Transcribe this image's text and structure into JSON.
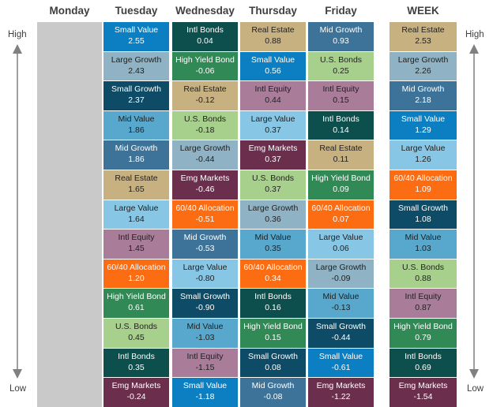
{
  "chart_data": {
    "type": "table",
    "columns": [
      "Monday",
      "Tuesday",
      "Wednesday",
      "Thursday",
      "Friday",
      "WEEK"
    ],
    "axis": {
      "top": "High",
      "bottom": "Low"
    },
    "colors": {
      "Small Value": "#0b7fc1",
      "Large Growth": "#8fb3c5",
      "Small Growth": "#0d4b66",
      "Mid Value": "#58a7cc",
      "Mid Growth": "#3d7398",
      "Real Estate": "#c8b181",
      "Large Value": "#87c6e4",
      "Intl Equity": "#a97d9a",
      "60/40 Allocation": "#fb6c13",
      "High Yield Bond": "#318a55",
      "U.S. Bonds": "#a8d08d",
      "Intl Bonds": "#0d4f4c",
      "Emg Markets": "#6b2e4d",
      "monday_blank": "#c9c9c9"
    },
    "days": [
      {
        "name": "Monday",
        "rows": []
      },
      {
        "name": "Tuesday",
        "rows": [
          {
            "asset": "Small Value",
            "value": "2.55"
          },
          {
            "asset": "Large Growth",
            "value": "2.43"
          },
          {
            "asset": "Small Growth",
            "value": "2.37"
          },
          {
            "asset": "Mid Value",
            "value": "1.86"
          },
          {
            "asset": "Mid Growth",
            "value": "1.86"
          },
          {
            "asset": "Real Estate",
            "value": "1.65"
          },
          {
            "asset": "Large Value",
            "value": "1.64"
          },
          {
            "asset": "Intl Equity",
            "value": "1.45"
          },
          {
            "asset": "60/40 Allocation",
            "value": "1.20"
          },
          {
            "asset": "High Yield Bond",
            "value": "0.61"
          },
          {
            "asset": "U.S. Bonds",
            "value": "0.45"
          },
          {
            "asset": "Intl Bonds",
            "value": "0.35"
          },
          {
            "asset": "Emg Markets",
            "value": "-0.24"
          }
        ]
      },
      {
        "name": "Wednesday",
        "rows": [
          {
            "asset": "Intl Bonds",
            "value": "0.04"
          },
          {
            "asset": "High Yield Bond",
            "value": "-0.06"
          },
          {
            "asset": "Real Estate",
            "value": "-0.12"
          },
          {
            "asset": "U.S. Bonds",
            "value": "-0.18"
          },
          {
            "asset": "Large Growth",
            "value": "-0.44"
          },
          {
            "asset": "Emg Markets",
            "value": "-0.46"
          },
          {
            "asset": "60/40 Allocation",
            "value": "-0.51"
          },
          {
            "asset": "Mid Growth",
            "value": "-0.53"
          },
          {
            "asset": "Large Value",
            "value": "-0.80"
          },
          {
            "asset": "Small Growth",
            "value": "-0.90"
          },
          {
            "asset": "Mid Value",
            "value": "-1.03"
          },
          {
            "asset": "Intl Equity",
            "value": "-1.15"
          },
          {
            "asset": "Small Value",
            "value": "-1.18"
          }
        ]
      },
      {
        "name": "Thursday",
        "rows": [
          {
            "asset": "Real Estate",
            "value": "0.88"
          },
          {
            "asset": "Small Value",
            "value": "0.56"
          },
          {
            "asset": "Intl Equity",
            "value": "0.44"
          },
          {
            "asset": "Large Value",
            "value": "0.37"
          },
          {
            "asset": "Emg Markets",
            "value": "0.37"
          },
          {
            "asset": "U.S. Bonds",
            "value": "0.37"
          },
          {
            "asset": "Large Growth",
            "value": "0.36"
          },
          {
            "asset": "Mid Value",
            "value": "0.35"
          },
          {
            "asset": "60/40 Allocation",
            "value": "0.34"
          },
          {
            "asset": "Intl Bonds",
            "value": "0.16"
          },
          {
            "asset": "High Yield Bond",
            "value": "0.15"
          },
          {
            "asset": "Small Growth",
            "value": "0.08"
          },
          {
            "asset": "Mid Growth",
            "value": "-0.08"
          }
        ]
      },
      {
        "name": "Friday",
        "rows": [
          {
            "asset": "Mid Growth",
            "value": "0.93"
          },
          {
            "asset": "U.S. Bonds",
            "value": "0.25"
          },
          {
            "asset": "Intl Equity",
            "value": "0.15"
          },
          {
            "asset": "Intl Bonds",
            "value": "0.14"
          },
          {
            "asset": "Real Estate",
            "value": "0.11"
          },
          {
            "asset": "High Yield Bond",
            "value": "0.09"
          },
          {
            "asset": "60/40 Allocation",
            "value": "0.07"
          },
          {
            "asset": "Large Value",
            "value": "0.06"
          },
          {
            "asset": "Large Growth",
            "value": "-0.09"
          },
          {
            "asset": "Mid Value",
            "value": "-0.13"
          },
          {
            "asset": "Small Growth",
            "value": "-0.44"
          },
          {
            "asset": "Small Value",
            "value": "-0.61"
          },
          {
            "asset": "Emg Markets",
            "value": "-1.22"
          }
        ]
      },
      {
        "name": "WEEK",
        "rows": [
          {
            "asset": "Real Estate",
            "value": "2.53"
          },
          {
            "asset": "Large Growth",
            "value": "2.26"
          },
          {
            "asset": "Mid Growth",
            "value": "2.18"
          },
          {
            "asset": "Small Value",
            "value": "1.29"
          },
          {
            "asset": "Large Value",
            "value": "1.26"
          },
          {
            "asset": "60/40 Allocation",
            "value": "1.09"
          },
          {
            "asset": "Small Growth",
            "value": "1.08"
          },
          {
            "asset": "Mid Value",
            "value": "1.03"
          },
          {
            "asset": "U.S. Bonds",
            "value": "0.88"
          },
          {
            "asset": "Intl Equity",
            "value": "0.87"
          },
          {
            "asset": "High Yield Bond",
            "value": "0.79"
          },
          {
            "asset": "Intl Bonds",
            "value": "0.69"
          },
          {
            "asset": "Emg Markets",
            "value": "-1.54"
          }
        ]
      }
    ]
  }
}
